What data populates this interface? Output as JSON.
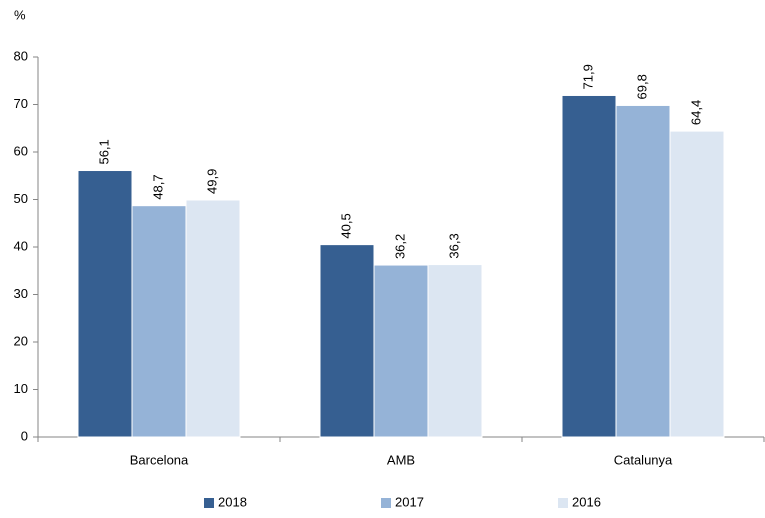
{
  "chart_data": {
    "type": "bar",
    "y_label": "%",
    "categories": [
      "Barcelona",
      "AMB",
      "Catalunya"
    ],
    "series": [
      {
        "name": "2018",
        "color": "#365f91",
        "values": [
          56.1,
          40.5,
          71.9
        ],
        "value_labels": [
          "56,1",
          "40,5",
          "71,9"
        ]
      },
      {
        "name": "2017",
        "color": "#95b3d7",
        "values": [
          48.7,
          36.2,
          69.8
        ],
        "value_labels": [
          "48,7",
          "36,2",
          "69,8"
        ]
      },
      {
        "name": "2016",
        "color": "#dce6f2",
        "values": [
          49.9,
          36.3,
          64.4
        ],
        "value_labels": [
          "49,9",
          "36,3",
          "64,4"
        ]
      }
    ],
    "ylim": [
      0,
      80
    ],
    "yticks": [
      0,
      10,
      20,
      30,
      40,
      50,
      60,
      70,
      80
    ],
    "grid": false,
    "legend": "bottom"
  }
}
